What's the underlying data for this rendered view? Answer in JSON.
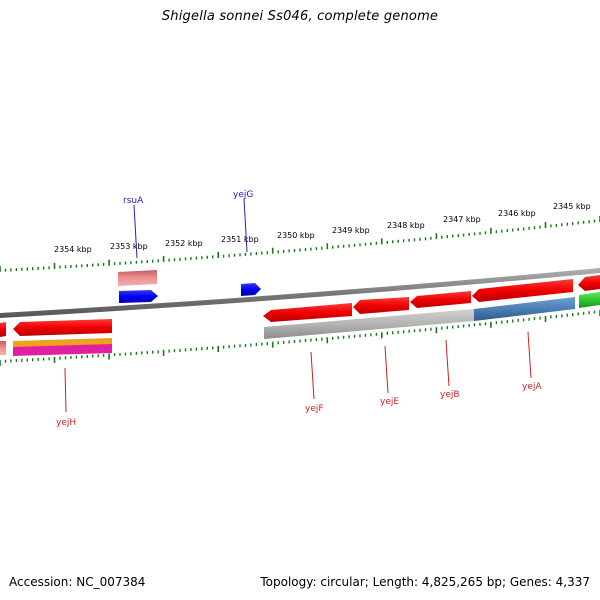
{
  "title": "Shigella sonnei Ss046, complete genome",
  "footer": {
    "accession": "Accession: NC_007384",
    "summary": "Topology: circular; Length: 4,825,265 bp; Genes: 4,337"
  },
  "scale_labels": [
    "2354 kbp",
    "2353 kbp",
    "2352 kbp",
    "2351 kbp",
    "2350 kbp",
    "2349 kbp",
    "2348 kbp",
    "2347 kbp",
    "2346 kbp",
    "2345 kbp"
  ],
  "gene_labels": {
    "top": [
      "rsuA",
      "yejG"
    ],
    "bottom": [
      "yejH",
      "yejF",
      "yejE",
      "yejB",
      "yejA"
    ]
  },
  "colors": {
    "forward_gene": "#1010f0",
    "reverse_gene": "#f01010",
    "top_label": "#2222bb",
    "bottom_label": "#cc2222",
    "ticks": "#1a7a1a",
    "backbone": "#8a8a8a",
    "gray_feature": "#b4b4b4",
    "blue_feature": "#4a7fb5",
    "green_feature": "#2ec82e",
    "pink_feature": "#e87878",
    "orange_feature": "#f0a020",
    "magenta_feature": "#e020a0"
  }
}
